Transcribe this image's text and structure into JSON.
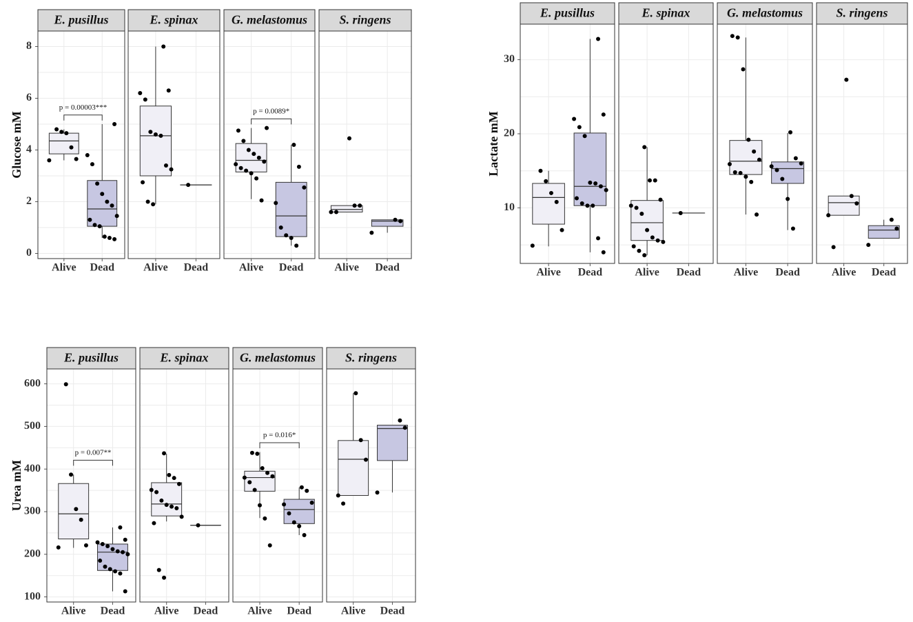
{
  "colors": {
    "alive_fill": "#f0eff6",
    "dead_fill": "#c7c7e2",
    "strip_fill": "#d9d9d9",
    "grid": "#ebebeb",
    "box_stroke": "#333333",
    "point": "#000000"
  },
  "chart_data": [
    {
      "type": "box",
      "id": "glucose",
      "ylabel": "Glucose mM",
      "ylim": [
        -0.2,
        8.6
      ],
      "yticks": [
        0,
        2,
        4,
        6,
        8
      ],
      "categories": [
        "Alive",
        "Dead"
      ],
      "facets": [
        {
          "name": "E. pusillus",
          "groups": [
            {
              "cat": "Alive",
              "min": 3.6,
              "q1": 3.85,
              "median": 4.35,
              "q3": 4.65,
              "max": 4.8,
              "points": [
                3.6,
                3.65,
                4.1,
                4.65,
                4.7,
                4.8
              ]
            },
            {
              "cat": "Dead",
              "min": 0.6,
              "q1": 1.05,
              "median": 1.72,
              "q3": 2.82,
              "max": 5.0,
              "points": [
                0.55,
                0.6,
                0.65,
                1.05,
                1.1,
                1.3,
                1.45,
                1.85,
                2.0,
                2.3,
                2.7,
                3.45,
                3.8,
                5.0
              ]
            }
          ],
          "annotation": "p = 0.00003***"
        },
        {
          "name": "E. spinax",
          "groups": [
            {
              "cat": "Alive",
              "min": 1.9,
              "q1": 3.0,
              "median": 4.55,
              "q3": 5.7,
              "max": 8.0,
              "points": [
                1.9,
                2.0,
                2.75,
                3.25,
                3.4,
                4.55,
                4.6,
                4.7,
                5.95,
                6.2,
                6.3,
                8.0
              ]
            },
            {
              "cat": "Dead",
              "min": 2.65,
              "q1": 2.65,
              "median": 2.65,
              "q3": 2.65,
              "max": 2.65,
              "points": [
                2.65
              ]
            }
          ],
          "annotation": ""
        },
        {
          "name": "G. melastomus",
          "groups": [
            {
              "cat": "Alive",
              "min": 2.1,
              "q1": 3.15,
              "median": 3.6,
              "q3": 4.25,
              "max": 4.85,
              "points": [
                2.05,
                2.9,
                3.1,
                3.2,
                3.3,
                3.45,
                3.55,
                3.7,
                3.85,
                4.0,
                4.35,
                4.75,
                4.85
              ]
            },
            {
              "cat": "Dead",
              "min": 0.3,
              "q1": 0.65,
              "median": 1.45,
              "q3": 2.75,
              "max": 4.2,
              "points": [
                0.3,
                0.6,
                0.7,
                1.0,
                1.95,
                2.55,
                3.35,
                4.2
              ]
            }
          ],
          "annotation": "p = 0.0089*"
        },
        {
          "name": "S. ringens",
          "groups": [
            {
              "cat": "Alive",
              "min": 1.6,
              "q1": 1.6,
              "median": 1.7,
              "q3": 1.85,
              "max": 1.85,
              "points": [
                1.6,
                1.6,
                1.85,
                1.85,
                4.45
              ]
            },
            {
              "cat": "Dead",
              "min": 0.8,
              "q1": 1.05,
              "median": 1.25,
              "q3": 1.3,
              "max": 1.3,
              "points": [
                0.8,
                1.25,
                1.3
              ]
            }
          ],
          "annotation": ""
        }
      ]
    },
    {
      "type": "box",
      "id": "lactate",
      "ylabel": "Lactate mM",
      "ylim": [
        2.5,
        34.8
      ],
      "yticks": [
        10,
        20,
        30
      ],
      "categories": [
        "Alive",
        "Dead"
      ],
      "facets": [
        {
          "name": "E. pusillus",
          "groups": [
            {
              "cat": "Alive",
              "min": 4.8,
              "q1": 7.8,
              "median": 11.4,
              "q3": 13.3,
              "max": 15.0,
              "points": [
                4.9,
                7.0,
                10.8,
                12.0,
                13.6,
                15.0
              ]
            },
            {
              "cat": "Dead",
              "min": 4.0,
              "q1": 10.3,
              "median": 12.9,
              "q3": 20.1,
              "max": 32.8,
              "points": [
                4.0,
                5.9,
                10.3,
                10.3,
                10.6,
                11.3,
                12.4,
                12.9,
                13.3,
                13.4,
                19.7,
                20.9,
                22.0,
                22.6,
                32.8
              ]
            }
          ],
          "annotation": ""
        },
        {
          "name": "E. spinax",
          "groups": [
            {
              "cat": "Alive",
              "min": 3.6,
              "q1": 5.6,
              "median": 8.0,
              "q3": 11.0,
              "max": 18.2,
              "points": [
                3.6,
                4.2,
                4.8,
                5.4,
                5.6,
                6.0,
                7.0,
                9.2,
                10.0,
                10.3,
                11.1,
                13.7,
                13.7,
                18.2
              ]
            },
            {
              "cat": "Dead",
              "min": 9.3,
              "q1": 9.3,
              "median": 9.3,
              "q3": 9.3,
              "max": 9.3,
              "points": [
                9.3
              ]
            }
          ],
          "annotation": ""
        },
        {
          "name": "G. melastomus",
          "groups": [
            {
              "cat": "Alive",
              "min": 9.1,
              "q1": 14.5,
              "median": 16.3,
              "q3": 19.1,
              "max": 33.0,
              "points": [
                9.1,
                13.5,
                14.2,
                14.7,
                14.8,
                15.9,
                16.5,
                17.6,
                19.2,
                28.7,
                33.0,
                33.2
              ]
            },
            {
              "cat": "Dead",
              "min": 7.0,
              "q1": 13.3,
              "median": 15.3,
              "q3": 16.2,
              "max": 20.1,
              "points": [
                7.2,
                11.2,
                13.9,
                15.1,
                15.6,
                16.0,
                16.7,
                20.2
              ]
            }
          ],
          "annotation": ""
        },
        {
          "name": "S. ringens",
          "groups": [
            {
              "cat": "Alive",
              "min": 9.0,
              "q1": 9.0,
              "median": 10.7,
              "q3": 11.6,
              "max": 11.6,
              "points": [
                4.7,
                9.0,
                10.6,
                11.6,
                27.3
              ]
            },
            {
              "cat": "Dead",
              "min": 5.9,
              "q1": 5.9,
              "median": 7.0,
              "q3": 7.6,
              "max": 8.4,
              "points": [
                5.0,
                7.2,
                8.4
              ]
            }
          ],
          "annotation": ""
        }
      ]
    },
    {
      "type": "box",
      "id": "urea",
      "ylabel": "Urea mM",
      "ylim": [
        88,
        635
      ],
      "yticks": [
        100,
        200,
        300,
        400,
        500,
        600
      ],
      "categories": [
        "Alive",
        "Dead"
      ],
      "facets": [
        {
          "name": "E. pusillus",
          "groups": [
            {
              "cat": "Alive",
              "min": 215,
              "q1": 236,
              "median": 295,
              "q3": 366,
              "max": 387,
              "points": [
                216,
                221,
                281,
                306,
                387,
                599
              ]
            },
            {
              "cat": "Dead",
              "min": 113,
              "q1": 162,
              "median": 205,
              "q3": 224,
              "max": 263,
              "points": [
                113,
                155,
                160,
                165,
                171,
                185,
                200,
                205,
                207,
                212,
                219,
                224,
                228,
                234,
                263
              ]
            }
          ],
          "annotation": "p = 0.007**"
        },
        {
          "name": "E. spinax",
          "groups": [
            {
              "cat": "Alive",
              "min": 277,
              "q1": 290,
              "median": 318,
              "q3": 368,
              "max": 436,
              "points": [
                145,
                163,
                273,
                288,
                308,
                312,
                316,
                326,
                346,
                351,
                365,
                379,
                386,
                437
              ]
            },
            {
              "cat": "Dead",
              "min": 268,
              "q1": 268,
              "median": 268,
              "q3": 268,
              "max": 268,
              "points": [
                268
              ]
            }
          ],
          "annotation": ""
        },
        {
          "name": "G. melastomus",
          "groups": [
            {
              "cat": "Alive",
              "min": 285,
              "q1": 348,
              "median": 380,
              "q3": 395,
              "max": 440,
              "points": [
                221,
                284,
                315,
                351,
                369,
                380,
                383,
                391,
                402,
                436,
                438
              ]
            },
            {
              "cat": "Dead",
              "min": 245,
              "q1": 272,
              "median": 305,
              "q3": 329,
              "max": 357,
              "points": [
                245,
                266,
                275,
                296,
                317,
                321,
                349,
                357
              ]
            }
          ],
          "annotation": "p = 0.016*"
        },
        {
          "name": "S. ringens",
          "groups": [
            {
              "cat": "Alive",
              "min": 338,
              "q1": 338,
              "median": 423,
              "q3": 467,
              "max": 578,
              "points": [
                319,
                338,
                422,
                468,
                578
              ]
            },
            {
              "cat": "Dead",
              "min": 345,
              "q1": 420,
              "median": 495,
              "q3": 503,
              "max": 503,
              "points": [
                345,
                497,
                514
              ]
            }
          ],
          "annotation": ""
        }
      ]
    }
  ]
}
